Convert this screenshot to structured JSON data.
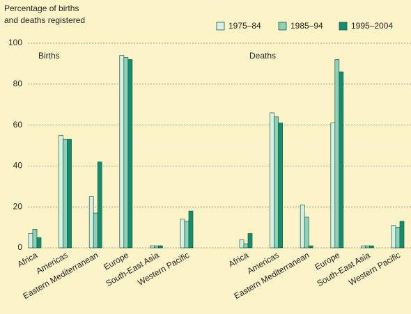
{
  "chart_data": {
    "type": "bar",
    "y_label": [
      "Percentage of births",
      "and deaths registered"
    ],
    "panels": [
      "Births",
      "Deaths"
    ],
    "categories": [
      "Africa",
      "Americas",
      "Eastern Mediterranean",
      "Europe",
      "South-East Asia",
      "Western Pacific",
      "Africa",
      "Americas",
      "Eastern Mediterranean",
      "Europe",
      "South-East Asia",
      "Western Pacific"
    ],
    "series": [
      {
        "name": "1975–84",
        "color": "#d9f0e6",
        "values": [
          7,
          55,
          25,
          94,
          1,
          14,
          4,
          66,
          21,
          61,
          1,
          11
        ]
      },
      {
        "name": "1985–94",
        "color": "#8fd0b6",
        "values": [
          9,
          53,
          17,
          93,
          1,
          13,
          2,
          64,
          15,
          92,
          1,
          10
        ]
      },
      {
        "name": "1995–2004",
        "color": "#168c6c",
        "values": [
          5,
          53,
          42,
          92,
          1,
          18,
          7,
          61,
          1,
          86,
          1,
          13
        ]
      }
    ],
    "ylim": [
      0,
      100
    ],
    "yticks": [
      0,
      20,
      40,
      60,
      80,
      100
    ],
    "grid": true
  }
}
